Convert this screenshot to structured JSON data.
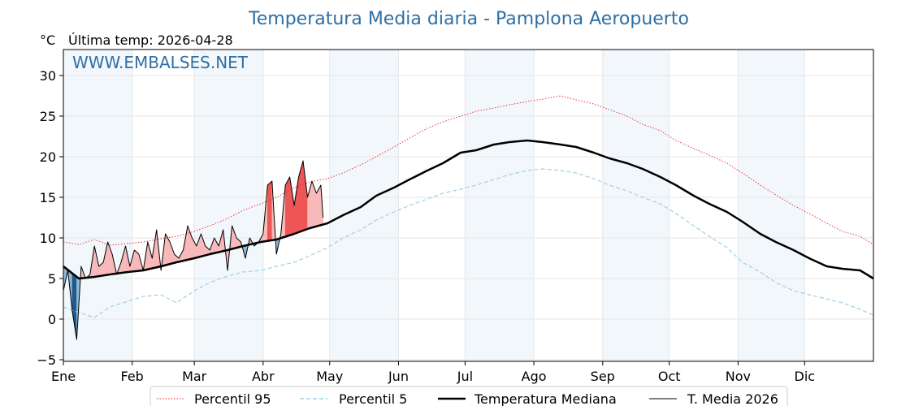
{
  "chart_data": {
    "type": "line",
    "title": "Temperatura Media diaria - Pamplona Aeropuerto",
    "unit_label": "°C",
    "last_temp_label": "Última temp: 2026-04-28",
    "watermark": "WWW.EMBALSES.NET",
    "ylim": [
      -5.2,
      33.2
    ],
    "xlim": [
      1,
      366
    ],
    "y_ticks": [
      30,
      25,
      20,
      15,
      10,
      5,
      0,
      -5
    ],
    "y_tick_labels": [
      "30",
      "25",
      "20",
      "15",
      "10",
      "5",
      "0",
      "−5"
    ],
    "months": [
      "Ene",
      "Feb",
      "Mar",
      "Abr",
      "May",
      "Jun",
      "Jul",
      "Ago",
      "Sep",
      "Oct",
      "Nov",
      "Dic"
    ],
    "month_start_days": [
      1,
      32,
      60,
      91,
      121,
      152,
      182,
      213,
      244,
      274,
      305,
      335
    ],
    "grid": true,
    "legend_position": "bottom-center",
    "series": [
      {
        "name": "Percentil 95",
        "style": "dotted-red",
        "color": "#ee2222",
        "x": [
          1,
          8,
          15,
          22,
          30,
          37,
          45,
          52,
          60,
          67,
          75,
          82,
          90,
          97,
          105,
          112,
          120,
          127,
          135,
          142,
          150,
          157,
          165,
          172,
          180,
          187,
          195,
          202,
          210,
          217,
          225,
          232,
          240,
          247,
          255,
          262,
          270,
          277,
          285,
          292,
          300,
          307,
          315,
          322,
          330,
          337,
          345,
          352,
          360,
          366
        ],
        "values": [
          9.5,
          9.2,
          9.8,
          9.1,
          9.3,
          9.5,
          9.9,
          10.2,
          10.8,
          11.5,
          12.4,
          13.4,
          14.2,
          15.0,
          16.2,
          16.9,
          17.3,
          18.0,
          19.0,
          20.0,
          21.2,
          22.3,
          23.5,
          24.3,
          25.0,
          25.6,
          26.0,
          26.4,
          26.8,
          27.1,
          27.5,
          27.0,
          26.5,
          25.8,
          25.0,
          24.0,
          23.2,
          22.0,
          21.0,
          20.2,
          19.2,
          18.0,
          16.5,
          15.3,
          14.0,
          13.0,
          11.8,
          10.8,
          10.2,
          9.2
        ]
      },
      {
        "name": "Percentil 5",
        "style": "dashed-lightblue",
        "color": "#9fd0e6",
        "x": [
          1,
          8,
          15,
          22,
          30,
          37,
          45,
          52,
          60,
          67,
          75,
          82,
          90,
          97,
          105,
          112,
          120,
          127,
          135,
          142,
          150,
          157,
          165,
          172,
          180,
          187,
          195,
          202,
          210,
          217,
          225,
          232,
          240,
          247,
          255,
          262,
          270,
          277,
          285,
          292,
          300,
          307,
          315,
          322,
          330,
          337,
          345,
          352,
          360,
          366
        ],
        "values": [
          1.5,
          0.8,
          0.2,
          1.5,
          2.2,
          2.8,
          3.0,
          2.0,
          3.5,
          4.5,
          5.3,
          5.8,
          6.0,
          6.5,
          7.0,
          7.8,
          8.8,
          10.0,
          11.0,
          12.2,
          13.2,
          14.0,
          14.8,
          15.5,
          16.0,
          16.5,
          17.2,
          17.8,
          18.3,
          18.5,
          18.3,
          18.0,
          17.3,
          16.5,
          15.8,
          15.0,
          14.2,
          13.0,
          11.5,
          10.2,
          8.8,
          7.0,
          5.8,
          4.5,
          3.5,
          3.0,
          2.5,
          2.0,
          1.2,
          0.5
        ]
      },
      {
        "name": "Temperatura Mediana",
        "style": "solid-black-thick",
        "color": "#000000",
        "x": [
          1,
          8,
          15,
          22,
          30,
          37,
          45,
          52,
          60,
          67,
          75,
          82,
          90,
          97,
          105,
          112,
          120,
          127,
          135,
          142,
          150,
          157,
          165,
          172,
          180,
          187,
          195,
          202,
          210,
          217,
          225,
          232,
          240,
          247,
          255,
          262,
          270,
          277,
          285,
          292,
          300,
          307,
          315,
          322,
          330,
          337,
          345,
          352,
          360,
          366
        ],
        "values": [
          6.5,
          5.0,
          5.2,
          5.5,
          5.8,
          6.0,
          6.5,
          7.0,
          7.5,
          8.0,
          8.5,
          9.0,
          9.5,
          9.8,
          10.5,
          11.2,
          11.8,
          12.8,
          13.8,
          15.2,
          16.2,
          17.2,
          18.3,
          19.2,
          20.5,
          20.8,
          21.5,
          21.8,
          22.0,
          21.8,
          21.5,
          21.2,
          20.5,
          19.8,
          19.2,
          18.5,
          17.5,
          16.5,
          15.2,
          14.2,
          13.2,
          12.0,
          10.5,
          9.5,
          8.5,
          7.5,
          6.5,
          6.2,
          6.0,
          5.0
        ]
      },
      {
        "name": "T. Media 2026",
        "style": "solid-black-thin",
        "color": "#000000",
        "x": [
          1,
          3,
          5,
          7,
          9,
          11,
          13,
          15,
          17,
          19,
          21,
          23,
          25,
          27,
          29,
          31,
          33,
          35,
          37,
          39,
          41,
          43,
          45,
          47,
          49,
          51,
          53,
          55,
          57,
          59,
          61,
          63,
          65,
          67,
          69,
          71,
          73,
          75,
          77,
          79,
          81,
          83,
          85,
          87,
          89,
          91,
          93,
          95,
          97,
          99,
          101,
          103,
          105,
          107,
          109,
          111,
          113,
          115,
          117,
          118
        ],
        "values": [
          3.5,
          6.0,
          1.0,
          -2.5,
          6.5,
          5.0,
          5.5,
          9.0,
          6.5,
          7.0,
          9.5,
          8.0,
          5.5,
          7.0,
          9.0,
          6.5,
          8.5,
          8.0,
          6.0,
          9.5,
          7.5,
          11.0,
          6.0,
          10.5,
          9.5,
          8.0,
          7.5,
          8.5,
          11.5,
          10.0,
          9.0,
          10.5,
          9.0,
          8.5,
          10.0,
          9.0,
          11.0,
          6.0,
          11.5,
          10.0,
          9.5,
          7.5,
          10.0,
          9.0,
          9.5,
          10.5,
          16.5,
          17.0,
          8.0,
          10.5,
          16.5,
          17.5,
          14.0,
          17.5,
          19.5,
          15.0,
          17.0,
          15.5,
          16.5,
          12.5
        ]
      }
    ]
  }
}
